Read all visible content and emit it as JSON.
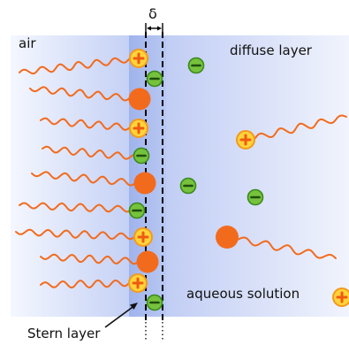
{
  "labels": {
    "air": "air",
    "diffuse_layer": "diffuse layer",
    "aqueous_solution": "aqueous solution",
    "stern_layer": "Stern layer",
    "delta": "δ"
  },
  "colors": {
    "chain": "#f26b1d",
    "head_orange": "#f26b1d",
    "cation_fill": "#ffd33a",
    "cation_ring": "#f39a1e",
    "cation_sign": "#ef5a12",
    "anion_fill": "#76c23c",
    "anion_ring": "#3a8a1e",
    "anion_sign": "#1f4d10",
    "stern_band": "#aebfee",
    "diffuse_band": "#c9d4f6",
    "edge_blue": "#dfe6fb"
  }
}
